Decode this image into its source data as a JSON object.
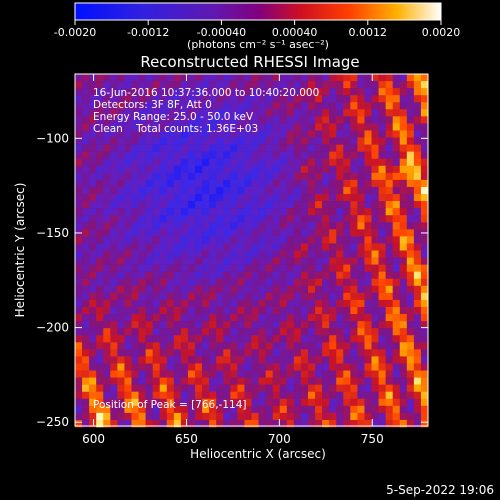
{
  "colorbar": {
    "ticks": [
      "-0.0020",
      "-0.0012",
      "-0.00040",
      "0.00040",
      "0.0012",
      "0.0020"
    ],
    "unit_label": "(photons cm⁻² s⁻¹ asec⁻²)",
    "range": [
      -0.002,
      0.002
    ]
  },
  "title": "Reconstructed RHESSI Image",
  "annotation": {
    "line1": "16-Jun-2016 10:37:36.000 to 10:40:20.000",
    "line2": "Detectors: 3F 8F, Att 0",
    "line3": "Energy Range: 25.0 - 50.0 keV",
    "line4": "Clean    Total counts: 1.36E+03",
    "peak": "Position of Peak = [766,-114]"
  },
  "xlabel": "Heliocentric X (arcsec)",
  "ylabel": "Heliocentric Y (arcsec)",
  "timestamp": "5-Sep-2022 19:06",
  "chart_data": {
    "type": "heatmap",
    "title": "Reconstructed RHESSI Image",
    "xlabel": "Heliocentric X (arcsec)",
    "ylabel": "Heliocentric Y (arcsec)",
    "xlim": [
      590,
      780
    ],
    "ylim": [
      -252,
      -66
    ],
    "x_ticks": [
      600,
      650,
      700,
      750
    ],
    "x_tick_labels": [
      "600",
      "650",
      "700",
      "750"
    ],
    "y_ticks": [
      -100,
      -150,
      -200,
      -250
    ],
    "y_tick_labels": [
      "−100",
      "−150",
      "−200",
      "−250"
    ],
    "colormap": "blue-purple-red-yellow-white",
    "peak_position": [
      766,
      -114
    ]
  }
}
